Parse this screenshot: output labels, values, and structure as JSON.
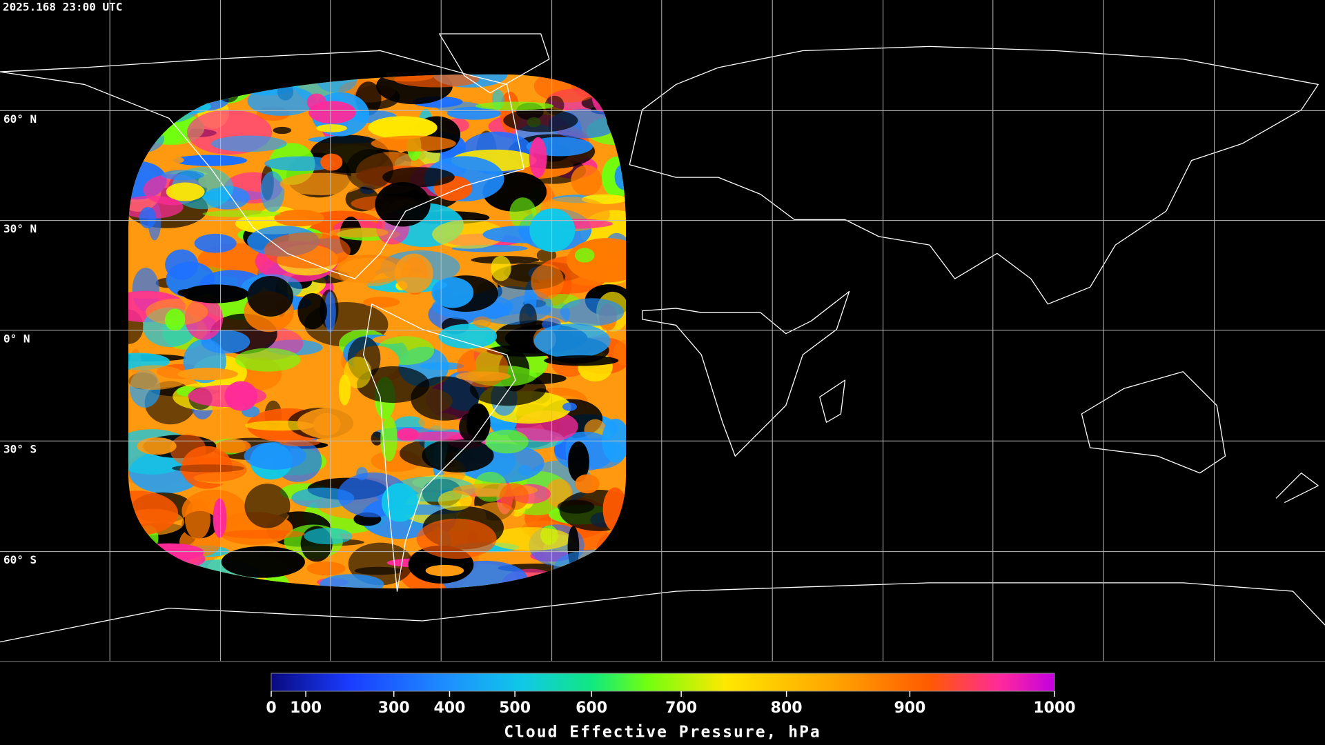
{
  "map": {
    "timestamp": "2025.168 23:00 UTC",
    "latitude_labels": [
      "60° N",
      "30° N",
      "0° N",
      "30° S",
      "60° S"
    ]
  },
  "colorbar": {
    "title": "Cloud Effective Pressure, hPa",
    "range": [
      0,
      1000
    ],
    "ticks": [
      0,
      100,
      300,
      400,
      500,
      600,
      700,
      800,
      900,
      1000
    ]
  }
}
